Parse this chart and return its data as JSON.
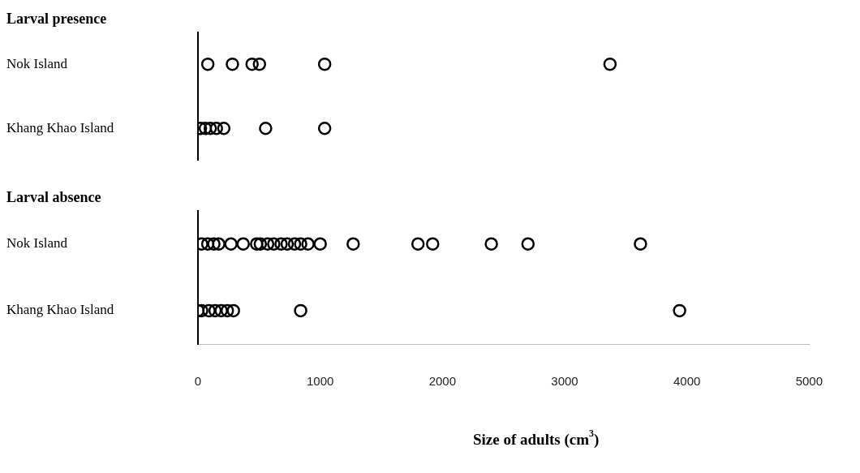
{
  "chart_data": [
    {
      "type": "scatter",
      "title": "Larval presence",
      "orientation": "horizontal",
      "categories": [
        "Nok Island",
        "Khang Khao Island"
      ],
      "xlim": [
        0,
        5000
      ],
      "xticks": [
        0,
        1000,
        2000,
        3000,
        4000,
        5000
      ],
      "tick_labels": "y",
      "marker": "circle",
      "grid": false,
      "legend": false,
      "series": [
        {
          "color": "#000000",
          "x": [
            "Nok Island",
            "Nok Island",
            "Nok Island",
            "Nok Island",
            "Nok Island",
            "Nok Island"
          ],
          "values": [
            80,
            280,
            440,
            500,
            1030,
            3350
          ]
        },
        {
          "color": "#000000",
          "x": [
            "Khang Khao Island",
            "Khang Khao Island",
            "Khang Khao Island",
            "Khang Khao Island",
            "Khang Khao Island",
            "Khang Khao Island",
            "Khang Khao Island"
          ],
          "values": [
            20,
            60,
            100,
            150,
            210,
            550,
            1030
          ]
        }
      ]
    },
    {
      "type": "scatter",
      "title": "Larval absence",
      "orientation": "horizontal",
      "categories": [
        "Nok Island",
        "Khang Khao Island"
      ],
      "xlabel": "Size of adults (cm$^{3}$)",
      "xlim": [
        0,
        5000
      ],
      "xticks": [
        0,
        1000,
        2000,
        3000,
        4000,
        5000
      ],
      "marker": "circle",
      "grid": false,
      "legend": false,
      "series": [
        {
          "color": "#000000",
          "x": [
            "Nok Island",
            "Nok Island",
            "Nok Island",
            "Nok Island",
            "Nok Island",
            "Nok Island",
            "Nok Island",
            "Nok Island",
            "Nok Island",
            "Nok Island",
            "Nok Island",
            "Nok Island",
            "Nok Island",
            "Nok Island",
            "Nok Island",
            "Nok Island",
            "Nok Island",
            "Nok Island",
            "Nok Island",
            "Nok Island",
            "Nok Island",
            "Nok Island"
          ],
          "values": [
            30,
            80,
            130,
            170,
            270,
            370,
            480,
            510,
            570,
            620,
            680,
            730,
            790,
            840,
            900,
            1000,
            1270,
            1800,
            1920,
            2400,
            2700,
            3620
          ]
        },
        {
          "color": "#000000",
          "x": [
            "Khang Khao Island",
            "Khang Khao Island",
            "Khang Khao Island",
            "Khang Khao Island",
            "Khang Khao Island",
            "Khang Khao Island",
            "Khang Khao Island",
            "Khang Khao Island",
            "Khang Khao Island"
          ],
          "values": [
            0,
            30,
            90,
            140,
            190,
            240,
            290,
            840,
            3940
          ]
        }
      ]
    }
  ]
}
